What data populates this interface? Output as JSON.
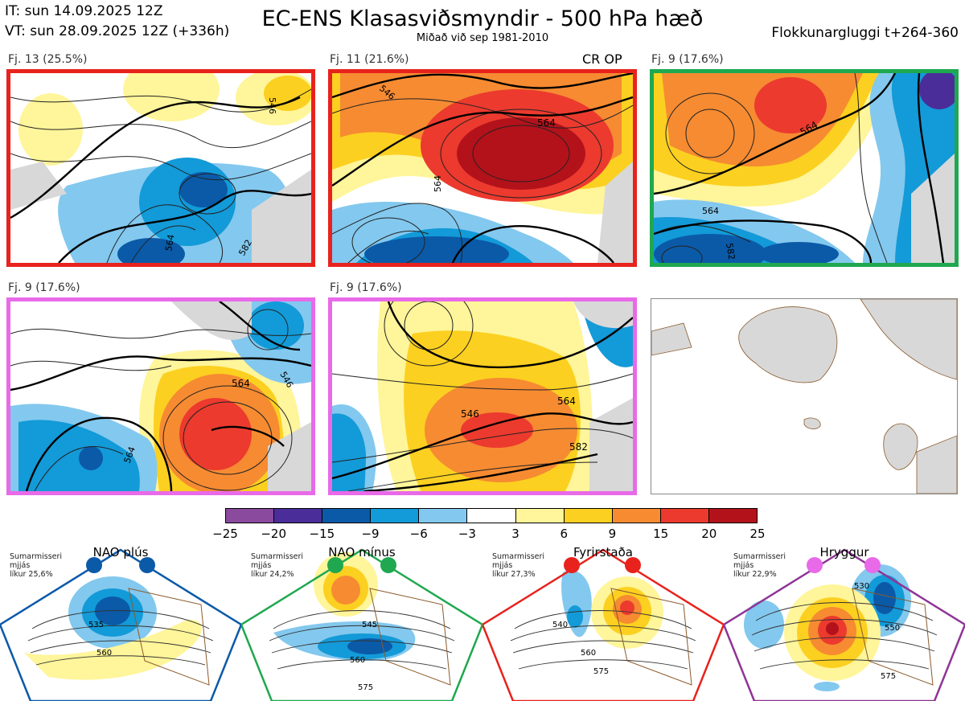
{
  "header": {
    "it": "IT: sun 14.09.2025 12Z",
    "vt": "VT: sun 28.09.2025 12Z  (+336h)",
    "title": "EC-ENS Klasasviðsmyndir - 500 hPa hæð",
    "subtitle": "Miðað við sep 1981-2010",
    "window": "Flokkunargluggi t+264-360"
  },
  "panels": [
    {
      "label": "Fj. 13 (25.5%)",
      "color": "#e8221d",
      "contours": [
        "546",
        "564",
        "582"
      ]
    },
    {
      "label": "Fj. 11 (21.6%)",
      "color": "#e8221d",
      "contours": [
        "546",
        "564",
        "564"
      ],
      "tag": "CR OP"
    },
    {
      "label": "Fj. 9 (17.6%)",
      "color": "#1fa84f",
      "contours": [
        "564",
        "582",
        "564"
      ]
    },
    {
      "label": "Fj. 9 (17.6%)",
      "color": "#e86ae8",
      "contours": [
        "564",
        "546",
        "564"
      ]
    },
    {
      "label": "Fj. 9 (17.6%)",
      "color": "#e86ae8",
      "contours": [
        "546",
        "564",
        "582"
      ]
    }
  ],
  "colorbar": {
    "colors": [
      "#8a4a9e",
      "#4b2d99",
      "#0b5aa8",
      "#139ad8",
      "#83c8ee",
      "#ffffff",
      "#fff59a",
      "#fcd020",
      "#f68b32",
      "#ec3a2e",
      "#b3121b"
    ],
    "ticks": [
      "−25",
      "−20",
      "−15",
      "−9",
      "−6",
      "−3",
      "3",
      "6",
      "9",
      "15",
      "20",
      "25"
    ]
  },
  "regimes": [
    {
      "name": "NAO plús",
      "info1": "Sumarmisseri",
      "info2": "mjjás",
      "info3": "líkur 25,6%",
      "color": "#0b5aa8",
      "labels": [
        "535",
        "560"
      ]
    },
    {
      "name": "NAO mínus",
      "info1": "Sumarmisseri",
      "info2": "mjjás",
      "info3": "líkur 24,2%",
      "color": "#1fa84f",
      "labels": [
        "545",
        "560",
        "575"
      ]
    },
    {
      "name": "Fyrirstaða",
      "info1": "Sumarmisseri",
      "info2": "mjjás",
      "info3": "líkur 27,3%",
      "color": "#e8221d",
      "labels": [
        "540",
        "560",
        "575"
      ]
    },
    {
      "name": "Hryggur",
      "info1": "Sumarmisseri",
      "info2": "mjjás",
      "info3": "líkur 22,9%",
      "color": "#e86ae8",
      "labels": [
        "530",
        "550",
        "575"
      ]
    }
  ]
}
